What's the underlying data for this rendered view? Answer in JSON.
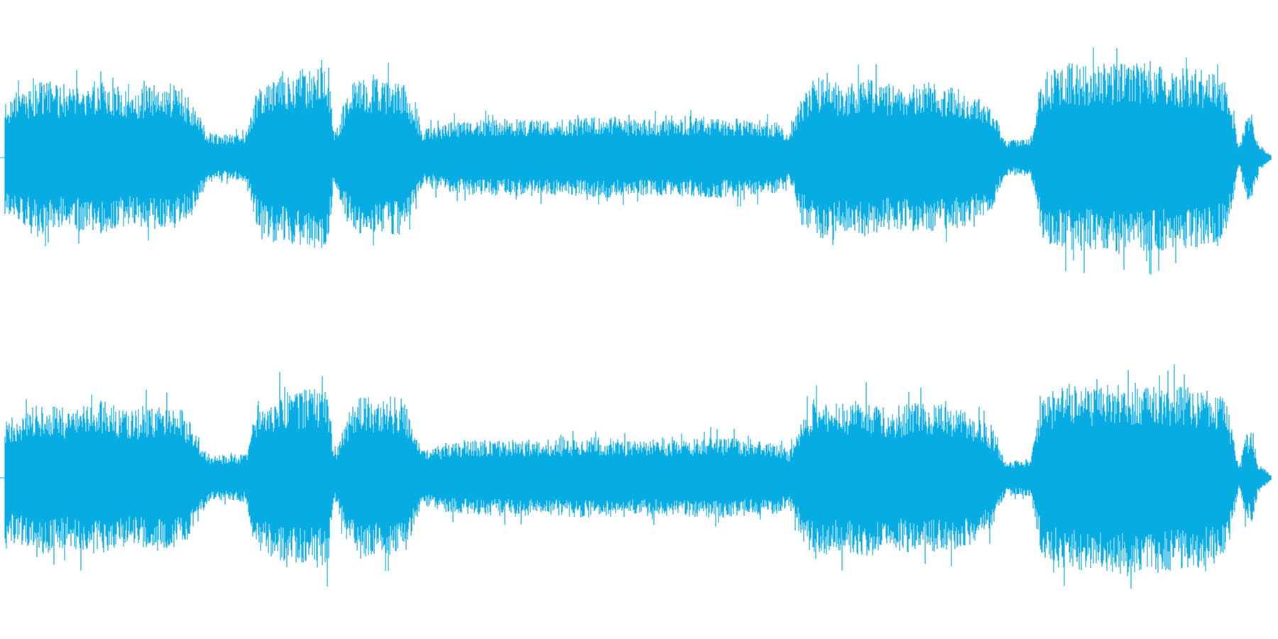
{
  "view": {
    "type": "stereo-audio-waveform",
    "waveform_color": "#06ACE2",
    "background_color": "#FFFFFF",
    "channels": [
      {
        "id": "channel-1"
      },
      {
        "id": "channel-2"
      }
    ],
    "envelope_profile": [
      [
        0.0,
        0.48
      ],
      [
        0.02,
        0.55
      ],
      [
        0.03,
        0.6
      ],
      [
        0.05,
        0.54
      ],
      [
        0.06,
        0.58
      ],
      [
        0.08,
        0.6
      ],
      [
        0.1,
        0.52
      ],
      [
        0.11,
        0.56
      ],
      [
        0.13,
        0.58
      ],
      [
        0.14,
        0.54
      ],
      [
        0.15,
        0.4
      ],
      [
        0.16,
        0.2
      ],
      [
        0.17,
        0.18
      ],
      [
        0.19,
        0.19
      ],
      [
        0.2,
        0.6
      ],
      [
        0.22,
        0.68
      ],
      [
        0.24,
        0.7
      ],
      [
        0.255,
        0.72
      ],
      [
        0.26,
        0.18
      ],
      [
        0.27,
        0.5
      ],
      [
        0.28,
        0.66
      ],
      [
        0.3,
        0.6
      ],
      [
        0.315,
        0.62
      ],
      [
        0.33,
        0.22
      ],
      [
        0.35,
        0.28
      ],
      [
        0.38,
        0.3
      ],
      [
        0.41,
        0.3
      ],
      [
        0.44,
        0.3
      ],
      [
        0.47,
        0.32
      ],
      [
        0.5,
        0.3
      ],
      [
        0.53,
        0.3
      ],
      [
        0.56,
        0.32
      ],
      [
        0.59,
        0.3
      ],
      [
        0.61,
        0.28
      ],
      [
        0.62,
        0.22
      ],
      [
        0.63,
        0.5
      ],
      [
        0.64,
        0.64
      ],
      [
        0.66,
        0.58
      ],
      [
        0.68,
        0.62
      ],
      [
        0.7,
        0.56
      ],
      [
        0.72,
        0.6
      ],
      [
        0.74,
        0.58
      ],
      [
        0.76,
        0.54
      ],
      [
        0.78,
        0.4
      ],
      [
        0.79,
        0.14
      ],
      [
        0.8,
        0.14
      ],
      [
        0.81,
        0.15
      ],
      [
        0.82,
        0.66
      ],
      [
        0.84,
        0.74
      ],
      [
        0.86,
        0.72
      ],
      [
        0.88,
        0.76
      ],
      [
        0.9,
        0.74
      ],
      [
        0.92,
        0.72
      ],
      [
        0.95,
        0.7
      ],
      [
        0.965,
        0.62
      ],
      [
        0.975,
        0.08
      ],
      [
        0.98,
        0.32
      ],
      [
        0.985,
        0.36
      ],
      [
        0.99,
        0.12
      ],
      [
        1.0,
        0.02
      ]
    ]
  }
}
